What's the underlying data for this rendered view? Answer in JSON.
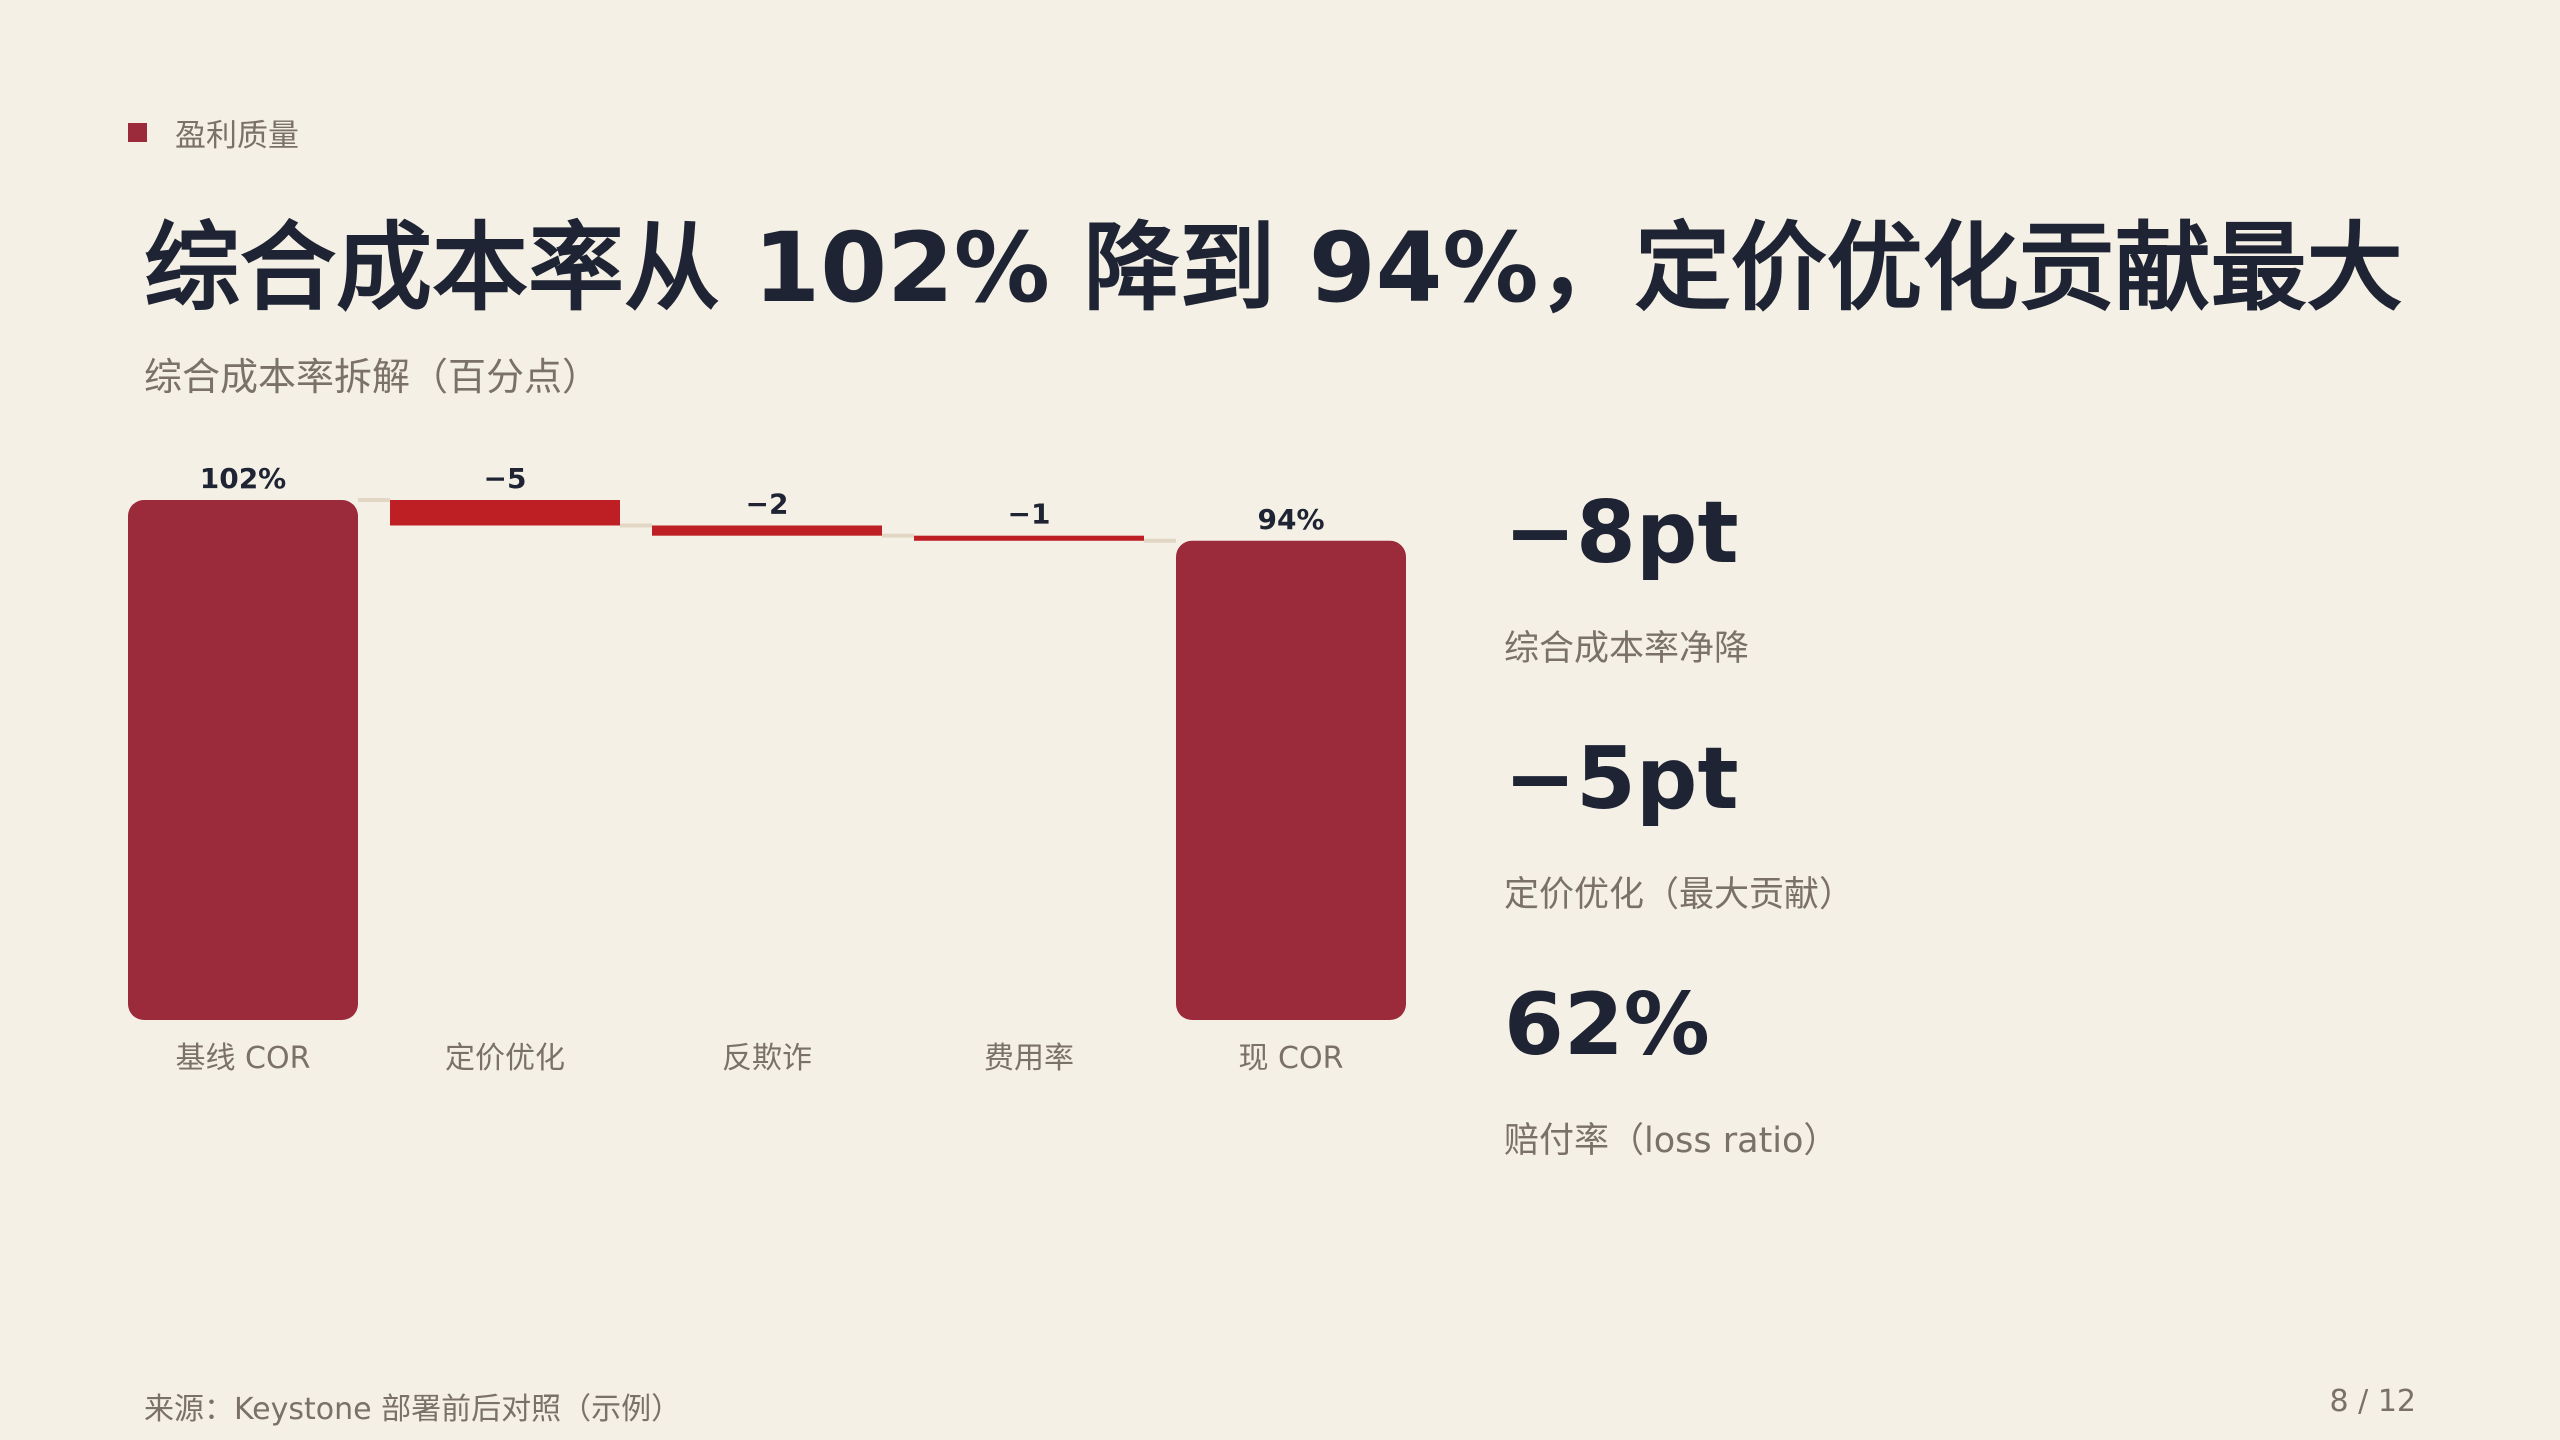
{
  "section": {
    "tag": "盈利质量"
  },
  "headline": "综合成本率从 102% 降到 94%，定价优化贡献最大",
  "subtitle": "综合成本率拆解（百分点）",
  "chart_data": {
    "type": "waterfall",
    "title": "综合成本率拆解（百分点）",
    "ylim": [
      0,
      102
    ],
    "steps": [
      {
        "label": "基线 COR",
        "kind": "total",
        "value": 102,
        "display": "102%"
      },
      {
        "label": "定价优化",
        "kind": "delta",
        "value": -5,
        "display": "−5"
      },
      {
        "label": "反欺诈",
        "kind": "delta",
        "value": -2,
        "display": "−2"
      },
      {
        "label": "费用率",
        "kind": "delta",
        "value": -1,
        "display": "−1"
      },
      {
        "label": "现 COR",
        "kind": "total",
        "value": 94,
        "display": "94%"
      }
    ],
    "colors": {
      "total": "#9b2a3a",
      "delta": "#bd1f25",
      "connector": "#e2d7c4",
      "label": "#1e2433",
      "axis_label": "#7a7168"
    }
  },
  "kpis": [
    {
      "value": "−8pt",
      "label": "综合成本率净降"
    },
    {
      "value": "−5pt",
      "label": "定价优化（最大贡献）"
    },
    {
      "value": "62%",
      "label": "赔付率（loss ratio）"
    }
  ],
  "footer": {
    "source": "来源：Keystone 部署前后对照（示例）",
    "page": "8 / 12"
  }
}
